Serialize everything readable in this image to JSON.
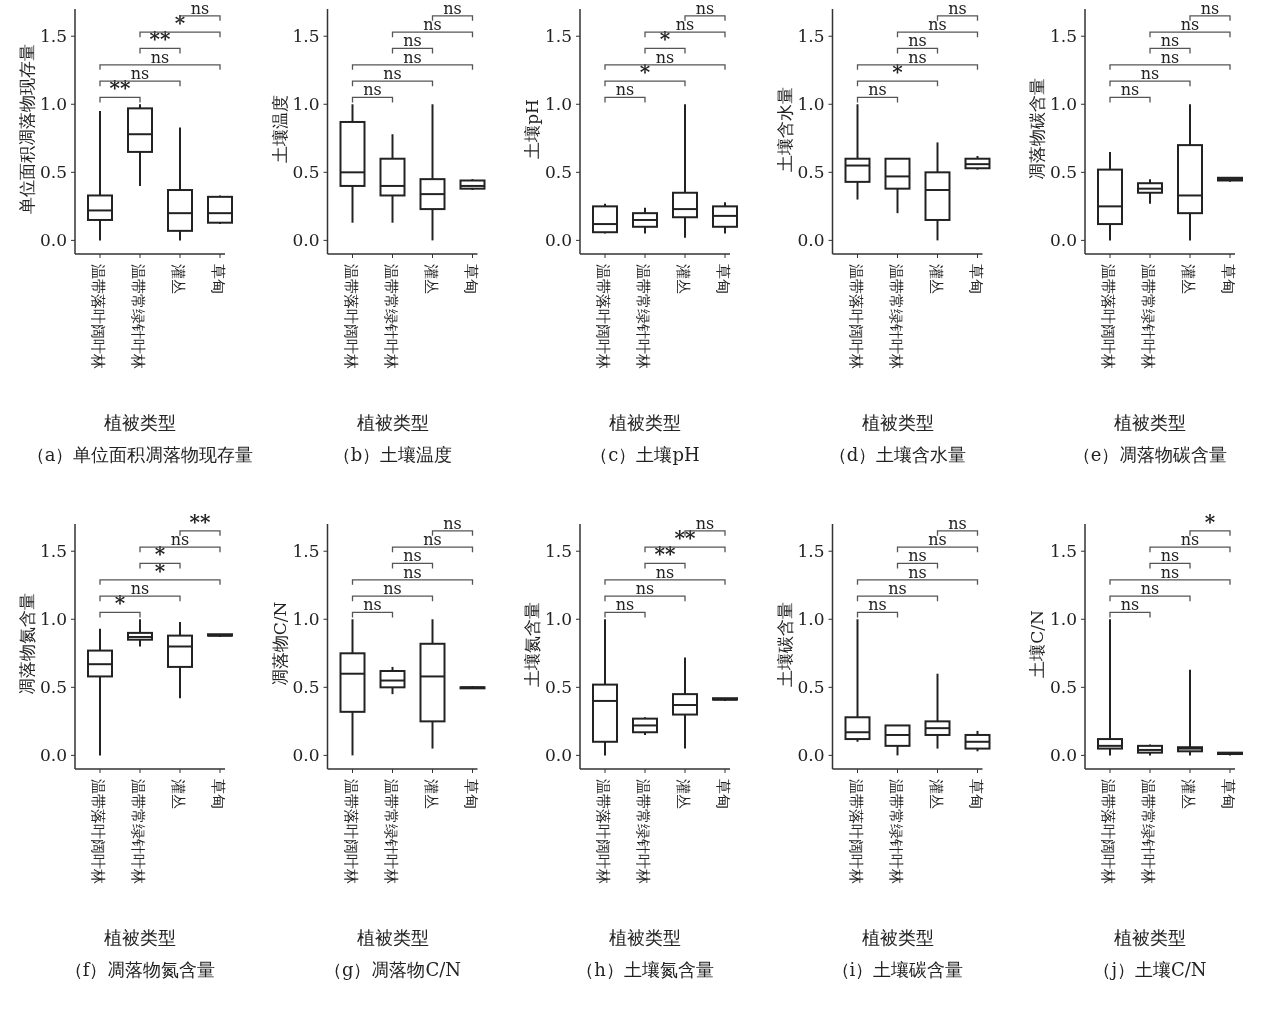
{
  "chart_data": [
    {
      "type": "box",
      "title": "（a）单位面积凋落物现存量",
      "xlabel": "植被类型",
      "ylabel": "单位面积凋落物现存量",
      "categories": [
        "温带落叶阔叶林",
        "温带常绿针叶林",
        "灌丛",
        "草甸"
      ],
      "ylim": [
        -0.1,
        1.7
      ],
      "yticks": [
        {
          "value": 0,
          "label": "0.0"
        },
        {
          "value": 0.5,
          "label": "0.5"
        },
        {
          "value": 1,
          "label": "1.0"
        },
        {
          "value": 1.5,
          "label": "1.5"
        }
      ],
      "boxes": [
        {
          "low": 0,
          "q1": 0.15,
          "median": 0.22,
          "q3": 0.33,
          "high": 0.95
        },
        {
          "low": 0.4,
          "q1": 0.65,
          "median": 0.78,
          "q3": 0.97,
          "high": 1.0
        },
        {
          "low": 0,
          "q1": 0.07,
          "median": 0.2,
          "q3": 0.37,
          "high": 0.83
        },
        {
          "low": 0.12,
          "q1": 0.13,
          "median": 0.2,
          "q3": 0.32,
          "high": 0.33
        }
      ],
      "annotations": [
        "**",
        "ns",
        "ns",
        "**",
        "*",
        "ns"
      ]
    },
    {
      "type": "box",
      "title": "（b）土壤温度",
      "xlabel": "植被类型",
      "ylabel": "土壤温度",
      "categories": [
        "温带落叶阔叶林",
        "温带常绿针叶林",
        "灌丛",
        "草甸"
      ],
      "ylim": [
        -0.1,
        1.7
      ],
      "yticks": [
        {
          "value": 0,
          "label": "0.0"
        },
        {
          "value": 0.5,
          "label": "0.5"
        },
        {
          "value": 1,
          "label": "1.0"
        },
        {
          "value": 1.5,
          "label": "1.5"
        }
      ],
      "boxes": [
        {
          "low": 0.13,
          "q1": 0.4,
          "median": 0.5,
          "q3": 0.87,
          "high": 1.0
        },
        {
          "low": 0.13,
          "q1": 0.33,
          "median": 0.4,
          "q3": 0.6,
          "high": 0.78
        },
        {
          "low": 0,
          "q1": 0.23,
          "median": 0.34,
          "q3": 0.45,
          "high": 1.0
        },
        {
          "low": 0.37,
          "q1": 0.38,
          "median": 0.4,
          "q3": 0.44,
          "high": 0.45
        }
      ],
      "annotations": [
        "ns",
        "ns",
        "ns",
        "ns",
        "ns",
        "ns"
      ]
    },
    {
      "type": "box",
      "title": "（c）土壤pH",
      "xlabel": "植被类型",
      "ylabel": "土壤pH",
      "categories": [
        "温带落叶阔叶林",
        "温带常绿针叶林",
        "灌丛",
        "草甸"
      ],
      "ylim": [
        -0.1,
        1.7
      ],
      "yticks": [
        {
          "value": 0,
          "label": "0.0"
        },
        {
          "value": 0.5,
          "label": "0.5"
        },
        {
          "value": 1,
          "label": "1.0"
        },
        {
          "value": 1.5,
          "label": "1.5"
        }
      ],
      "boxes": [
        {
          "low": 0.05,
          "q1": 0.06,
          "median": 0.12,
          "q3": 0.25,
          "high": 0.27
        },
        {
          "low": 0.05,
          "q1": 0.1,
          "median": 0.15,
          "q3": 0.2,
          "high": 0.24
        },
        {
          "low": 0.02,
          "q1": 0.17,
          "median": 0.23,
          "q3": 0.35,
          "high": 1.0
        },
        {
          "low": 0.05,
          "q1": 0.1,
          "median": 0.18,
          "q3": 0.25,
          "high": 0.28
        }
      ],
      "annotations": [
        "ns",
        "*",
        "ns",
        "*",
        "ns",
        "ns"
      ]
    },
    {
      "type": "box",
      "title": "（d）土壤含水量",
      "xlabel": "植被类型",
      "ylabel": "土壤含水量",
      "categories": [
        "温带落叶阔叶林",
        "温带常绿针叶林",
        "灌丛",
        "草甸"
      ],
      "ylim": [
        -0.1,
        1.7
      ],
      "yticks": [
        {
          "value": 0,
          "label": "0.0"
        },
        {
          "value": 0.5,
          "label": "0.5"
        },
        {
          "value": 1,
          "label": "1.0"
        },
        {
          "value": 1.5,
          "label": "1.5"
        }
      ],
      "boxes": [
        {
          "low": 0.3,
          "q1": 0.43,
          "median": 0.55,
          "q3": 0.6,
          "high": 1.0
        },
        {
          "low": 0.2,
          "q1": 0.38,
          "median": 0.47,
          "q3": 0.6,
          "high": 0.6
        },
        {
          "low": 0,
          "q1": 0.15,
          "median": 0.37,
          "q3": 0.5,
          "high": 0.72
        },
        {
          "low": 0.52,
          "q1": 0.53,
          "median": 0.56,
          "q3": 0.6,
          "high": 0.62
        }
      ],
      "annotations": [
        "ns",
        "*",
        "ns",
        "ns",
        "ns",
        "ns"
      ]
    },
    {
      "type": "box",
      "title": "（e）凋落物碳含量",
      "xlabel": "植被类型",
      "ylabel": "凋落物碳含量",
      "categories": [
        "温带落叶阔叶林",
        "温带常绿针叶林",
        "灌丛",
        "草甸"
      ],
      "ylim": [
        -0.1,
        1.7
      ],
      "yticks": [
        {
          "value": 0,
          "label": "0.0"
        },
        {
          "value": 0.5,
          "label": "0.5"
        },
        {
          "value": 1,
          "label": "1.0"
        },
        {
          "value": 1.5,
          "label": "1.5"
        }
      ],
      "boxes": [
        {
          "low": 0,
          "q1": 0.12,
          "median": 0.25,
          "q3": 0.52,
          "high": 0.65
        },
        {
          "low": 0.27,
          "q1": 0.35,
          "median": 0.38,
          "q3": 0.42,
          "high": 0.45
        },
        {
          "low": 0,
          "q1": 0.2,
          "median": 0.33,
          "q3": 0.7,
          "high": 1.0
        },
        {
          "low": 0.43,
          "q1": 0.44,
          "median": 0.45,
          "q3": 0.46,
          "high": 0.46
        }
      ],
      "annotations": [
        "ns",
        "ns",
        "ns",
        "ns",
        "ns",
        "ns"
      ]
    },
    {
      "type": "box",
      "title": "（f）凋落物氮含量",
      "xlabel": "植被类型",
      "ylabel": "凋落物氮含量",
      "categories": [
        "温带落叶阔叶林",
        "温带常绿针叶林",
        "灌丛",
        "草甸"
      ],
      "ylim": [
        -0.1,
        1.7
      ],
      "yticks": [
        {
          "value": 0,
          "label": "0.0"
        },
        {
          "value": 0.5,
          "label": "0.5"
        },
        {
          "value": 1,
          "label": "1.0"
        },
        {
          "value": 1.5,
          "label": "1.5"
        }
      ],
      "boxes": [
        {
          "low": 0,
          "q1": 0.58,
          "median": 0.67,
          "q3": 0.77,
          "high": 0.93
        },
        {
          "low": 0.8,
          "q1": 0.85,
          "median": 0.87,
          "q3": 0.9,
          "high": 1.0
        },
        {
          "low": 0.42,
          "q1": 0.65,
          "median": 0.8,
          "q3": 0.88,
          "high": 0.98
        },
        {
          "low": 0.87,
          "q1": 0.88,
          "median": 0.88,
          "q3": 0.89,
          "high": 0.89
        }
      ],
      "annotations": [
        "*",
        "ns",
        "*",
        "*",
        "ns",
        "**"
      ]
    },
    {
      "type": "box",
      "title": "（g）凋落物C/N",
      "xlabel": "植被类型",
      "ylabel": "凋落物C/N",
      "categories": [
        "温带落叶阔叶林",
        "温带常绿针叶林",
        "灌丛",
        "草甸"
      ],
      "ylim": [
        -0.1,
        1.7
      ],
      "yticks": [
        {
          "value": 0,
          "label": "0.0"
        },
        {
          "value": 0.5,
          "label": "0.5"
        },
        {
          "value": 1,
          "label": "1.0"
        },
        {
          "value": 1.5,
          "label": "1.5"
        }
      ],
      "boxes": [
        {
          "low": 0,
          "q1": 0.32,
          "median": 0.6,
          "q3": 0.75,
          "high": 1.0
        },
        {
          "low": 0.45,
          "q1": 0.5,
          "median": 0.55,
          "q3": 0.62,
          "high": 0.65
        },
        {
          "low": 0.05,
          "q1": 0.25,
          "median": 0.58,
          "q3": 0.82,
          "high": 1.0
        },
        {
          "low": 0.49,
          "q1": 0.5,
          "median": 0.5,
          "q3": 0.5,
          "high": 0.51
        }
      ],
      "annotations": [
        "ns",
        "ns",
        "ns",
        "ns",
        "ns",
        "ns"
      ]
    },
    {
      "type": "box",
      "title": "（h）土壤氮含量",
      "xlabel": "植被类型",
      "ylabel": "土壤氮含量",
      "categories": [
        "温带落叶阔叶林",
        "温带常绿针叶林",
        "灌丛",
        "草甸"
      ],
      "ylim": [
        -0.1,
        1.7
      ],
      "yticks": [
        {
          "value": 0,
          "label": "0.0"
        },
        {
          "value": 0.5,
          "label": "0.5"
        },
        {
          "value": 1,
          "label": "1.0"
        },
        {
          "value": 1.5,
          "label": "1.5"
        }
      ],
      "boxes": [
        {
          "low": 0,
          "q1": 0.1,
          "median": 0.4,
          "q3": 0.52,
          "high": 1.0
        },
        {
          "low": 0.15,
          "q1": 0.17,
          "median": 0.22,
          "q3": 0.27,
          "high": 0.28
        },
        {
          "low": 0.05,
          "q1": 0.3,
          "median": 0.37,
          "q3": 0.45,
          "high": 0.72
        },
        {
          "low": 0.4,
          "q1": 0.41,
          "median": 0.41,
          "q3": 0.42,
          "high": 0.42
        }
      ],
      "annotations": [
        "ns",
        "ns",
        "ns",
        "**",
        "**",
        "ns"
      ]
    },
    {
      "type": "box",
      "title": "（i）土壤碳含量",
      "xlabel": "植被类型",
      "ylabel": "土壤碳含量",
      "categories": [
        "温带落叶阔叶林",
        "温带常绿针叶林",
        "灌丛",
        "草甸"
      ],
      "ylim": [
        -0.1,
        1.7
      ],
      "yticks": [
        {
          "value": 0,
          "label": "0.0"
        },
        {
          "value": 0.5,
          "label": "0.5"
        },
        {
          "value": 1,
          "label": "1.0"
        },
        {
          "value": 1.5,
          "label": "1.5"
        }
      ],
      "boxes": [
        {
          "low": 0.1,
          "q1": 0.12,
          "median": 0.17,
          "q3": 0.28,
          "high": 1.0
        },
        {
          "low": 0,
          "q1": 0.07,
          "median": 0.15,
          "q3": 0.22,
          "high": 0.22
        },
        {
          "low": 0.05,
          "q1": 0.15,
          "median": 0.2,
          "q3": 0.25,
          "high": 0.6
        },
        {
          "low": 0.03,
          "q1": 0.05,
          "median": 0.1,
          "q3": 0.15,
          "high": 0.18
        }
      ],
      "annotations": [
        "ns",
        "ns",
        "ns",
        "ns",
        "ns",
        "ns"
      ]
    },
    {
      "type": "box",
      "title": "（j）土壤C/N",
      "xlabel": "植被类型",
      "ylabel": "土壤C/N",
      "categories": [
        "温带落叶阔叶林",
        "温带常绿针叶林",
        "灌丛",
        "草甸"
      ],
      "ylim": [
        -0.1,
        1.7
      ],
      "yticks": [
        {
          "value": 0,
          "label": "0.0"
        },
        {
          "value": 0.5,
          "label": "0.5"
        },
        {
          "value": 1,
          "label": "1.0"
        },
        {
          "value": 1.5,
          "label": "1.5"
        }
      ],
      "boxes": [
        {
          "low": 0,
          "q1": 0.05,
          "median": 0.07,
          "q3": 0.12,
          "high": 1.0
        },
        {
          "low": 0,
          "q1": 0.02,
          "median": 0.04,
          "q3": 0.07,
          "high": 0.08
        },
        {
          "low": 0,
          "q1": 0.03,
          "median": 0.05,
          "q3": 0.06,
          "high": 0.63
        },
        {
          "low": 0,
          "q1": 0.01,
          "median": 0.01,
          "q3": 0.02,
          "high": 0.02
        }
      ],
      "annotations": [
        "ns",
        "ns",
        "ns",
        "ns",
        "ns",
        "*"
      ]
    }
  ]
}
